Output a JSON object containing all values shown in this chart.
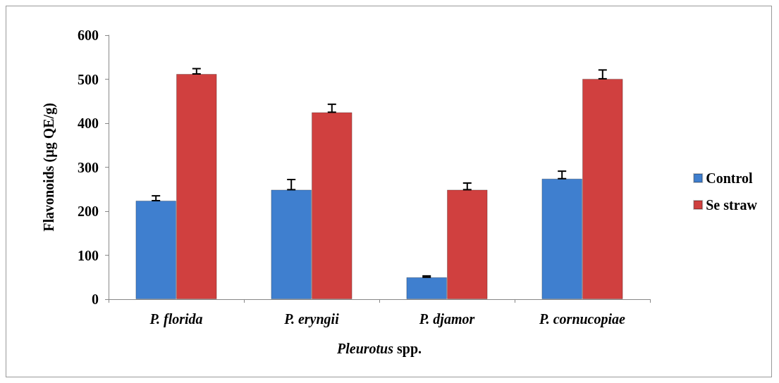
{
  "chart_data": {
    "type": "bar",
    "xlabel": "Pleurotus spp.",
    "ylabel": "Flavonoids (µg QE/g)",
    "categories": [
      "P. florida",
      "P. eryngii",
      "P. djamor",
      "P. cornucopiae"
    ],
    "series": [
      {
        "name": "Control",
        "color": "#3f7fcf",
        "values": [
          224,
          249,
          50,
          274
        ],
        "errors": [
          [
            224,
            235
          ],
          [
            249,
            272
          ],
          [
            50,
            53
          ],
          [
            274,
            291
          ]
        ]
      },
      {
        "name": "Se straw",
        "color": "#d0403f",
        "values": [
          512,
          425,
          249,
          501
        ],
        "errors": [
          [
            512,
            524
          ],
          [
            425,
            443
          ],
          [
            249,
            264
          ],
          [
            501,
            521
          ]
        ]
      }
    ],
    "ylim": [
      0,
      600
    ],
    "yticks": [
      0,
      100,
      200,
      300,
      400,
      500,
      600
    ],
    "grid": false,
    "legend": "right"
  }
}
